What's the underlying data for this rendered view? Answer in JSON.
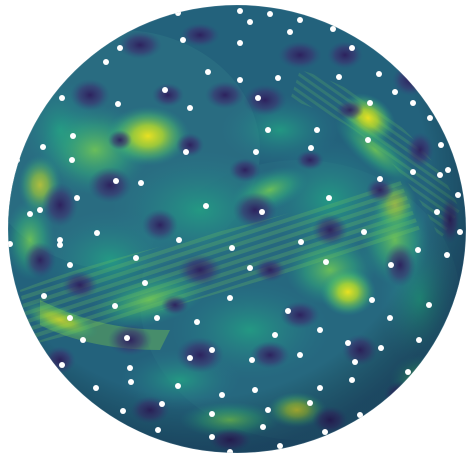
{
  "image": {
    "subject": "sphere-heatmap-with-point-markers",
    "colormap": "viridis",
    "colors": {
      "background": "#ffffff",
      "base": "#1f5d7a",
      "dark": "#2b1f5a",
      "teal": "#1f9a89",
      "green": "#5ec962",
      "yellow": "#e6e419",
      "marker": "#ffffff"
    }
  }
}
